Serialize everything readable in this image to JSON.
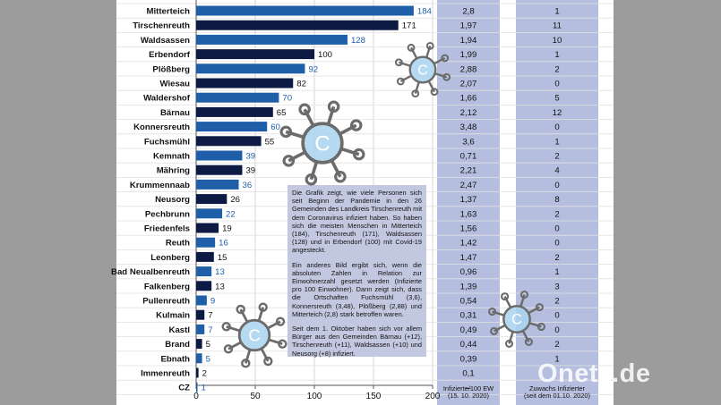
{
  "chart_data": {
    "type": "bar",
    "orientation": "horizontal",
    "categories": [
      "Mitterteich",
      "Tirschenreuth",
      "Waldsassen",
      "Erbendorf",
      "Plößberg",
      "Wiesau",
      "Waldershof",
      "Bärnau",
      "Konnersreuth",
      "Fuchsmühl",
      "Kemnath",
      "Mähring",
      "Krummennaab",
      "Neusorg",
      "Pechbrunn",
      "Friedenfels",
      "Reuth",
      "Leonberg",
      "Bad Neualbenreuth",
      "Falkenberg",
      "Pullenreuth",
      "Kulmain",
      "Kastl",
      "Brand",
      "Ebnath",
      "Immenreuth",
      "CZ"
    ],
    "values": [
      184,
      171,
      128,
      100,
      92,
      82,
      70,
      65,
      60,
      55,
      39,
      39,
      36,
      26,
      22,
      19,
      16,
      15,
      13,
      13,
      9,
      7,
      7,
      5,
      5,
      2,
      1
    ],
    "value_labels": [
      "184",
      "171",
      "128",
      "100",
      "92",
      "82",
      "70",
      "65",
      "60",
      "55",
      "39",
      "39",
      "36",
      "26",
      "22",
      "19",
      "16",
      "15",
      "13",
      "13",
      "9",
      "7",
      "7",
      "5",
      "5",
      "2",
      "1"
    ],
    "bar_colors": [
      "#1f5ea8",
      "#0d1a44",
      "#1f5ea8",
      "#0d1a44",
      "#1f5ea8",
      "#0d1a44",
      "#1f5ea8",
      "#0d1a44",
      "#1f5ea8",
      "#0d1a44",
      "#1f5ea8",
      "#0d1a44",
      "#1f5ea8",
      "#0d1a44",
      "#1f5ea8",
      "#0d1a44",
      "#1f5ea8",
      "#0d1a44",
      "#1f5ea8",
      "#0d1a44",
      "#1f5ea8",
      "#0d1a44",
      "#1f5ea8",
      "#0d1a44",
      "#1f5ea8",
      "#0d1a44",
      "#1f5ea8"
    ],
    "label_colors": [
      "#1f5ea8",
      "#111111",
      "#1f5ea8",
      "#111111",
      "#1f5ea8",
      "#111111",
      "#1f5ea8",
      "#111111",
      "#1f5ea8",
      "#111111",
      "#1f5ea8",
      "#111111",
      "#1f5ea8",
      "#111111",
      "#1f5ea8",
      "#111111",
      "#1f5ea8",
      "#111111",
      "#1f5ea8",
      "#111111",
      "#1f5ea8",
      "#111111",
      "#1f5ea8",
      "#111111",
      "#1f5ea8",
      "#111111",
      "#1f5ea8"
    ],
    "xlim": [
      0,
      200
    ],
    "xticks": [
      "0",
      "50",
      "100",
      "150",
      "200"
    ],
    "grid": true,
    "incidence": [
      "2,8",
      "1,97",
      "1,94",
      "1,99",
      "2,88",
      "2,07",
      "1,66",
      "2,12",
      "3,48",
      "3,6",
      "0,71",
      "2,21",
      "2,47",
      "1,37",
      "1,63",
      "1,56",
      "1,42",
      "1,47",
      "0,96",
      "1,39",
      "0,54",
      "0,31",
      "0,49",
      "0,44",
      "0,39",
      "0,1",
      "–"
    ],
    "increase": [
      "1",
      "11",
      "10",
      "1",
      "2",
      "0",
      "5",
      "12",
      "0",
      "1",
      "2",
      "4",
      "0",
      "8",
      "2",
      "0",
      "0",
      "2",
      "1",
      "3",
      "2",
      "0",
      "0",
      "2",
      "1",
      "",
      ""
    ],
    "incidence_label": "Infizierte/100 EW\n(15. 10. 2020)",
    "increase_label": "Zuwachs I  ­­ ­­­ ­ ­nfizierter\n(seit dem 01.10. 2020)",
    "increase_label_lines": [
      "Zuwachs Infizierter",
      "(seit dem 01.10. 2020)"
    ],
    "incidence_label_lines": [
      "Infizierte/100 EW",
      "(15. 10. 2020)"
    ]
  },
  "note": {
    "p1": "Die Grafik zeigt, wie viele Personen sich seit Beginn der Pandemie in den 26 Gemeinden des Landkreis Tirschenreuth mit dem Coronavirus infiziert haben. So haben sich die meisten Menschen in Mitterteich (184), Tirschenreuth (171), Waldsassen (128) und in Erbendorf (100) mit Covid-19 angesteckt.",
    "p2": "Ein anderes Bild ergibt sich, wenn die absoluten Zahlen in Relation zur Einwohnerzahl gesetzt werden (Infizierte pro 100 Einwohner). Dann zeigt sich, dass die Ortschaften Fuchsmühl (3,6), Konnersreuth (3,48), Plößberg (2,88) und Mitterteich (2,8) stark betroffen waren.",
    "p3": "Seit dem 1. Oktober haben sich vor allem Bürger aus den Gemeinden Bärnau (+12), Tirschenreuth (+11), Waldsassen (+10) und Neusorg (+8) infiziert."
  },
  "watermark": "Onetz.de",
  "virus_letter": "C",
  "colors": {
    "band": "#9d9c9c",
    "column": "#b6bedf",
    "dark_bar": "#0d1a44",
    "blue_bar": "#1f5ea8",
    "note_bg": "#c3c8e1",
    "virus_fill": "#a9d4ee",
    "virus_stroke": "#6b6b6b"
  }
}
